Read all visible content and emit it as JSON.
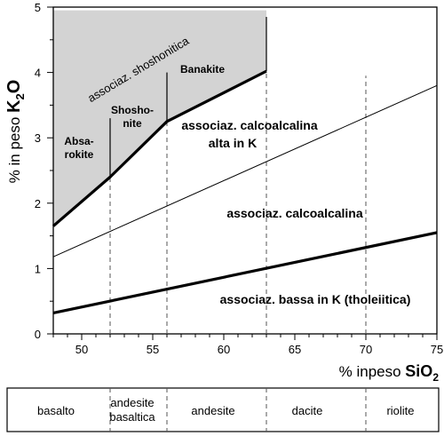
{
  "chart_data": {
    "type": "line",
    "xlabel": {
      "prefix": "% inpeso ",
      "bold": "SiO",
      "sub": "2"
    },
    "ylabel": {
      "prefix": "% in peso ",
      "bold": "K",
      "sub": "2",
      "suffix": "O"
    },
    "xlim": [
      48,
      75
    ],
    "ylim": [
      0,
      5
    ],
    "xticks": [
      "50",
      "55",
      "60",
      "65",
      "70",
      "75"
    ],
    "xtick_values": [
      50,
      55,
      60,
      65,
      70,
      75
    ],
    "yticks": [
      "0",
      "1",
      "2",
      "3",
      "4",
      "5"
    ],
    "ytick_values": [
      0,
      1,
      2,
      3,
      4,
      5
    ],
    "shoshonitic_region": {
      "fill": "#d3d3d3",
      "boundary_x": 63,
      "top_y": 4.95
    },
    "series": [
      {
        "points": [
          [
            48,
            1.65
          ],
          [
            52,
            2.4
          ],
          [
            56,
            3.25
          ],
          [
            63,
            4.02
          ]
        ],
        "style": "thick"
      },
      {
        "points": [
          [
            48,
            1.18
          ],
          [
            75,
            3.8
          ]
        ],
        "style": "thin"
      },
      {
        "points": [
          [
            48,
            0.32
          ],
          [
            75,
            1.55
          ]
        ],
        "style": "thick"
      }
    ],
    "vertical_dividers": [
      {
        "x": 52,
        "y_from": 2.4,
        "y_to": 3.3,
        "style": "solid"
      },
      {
        "x": 56,
        "y_from": 3.25,
        "y_to": 4.0,
        "style": "solid"
      },
      {
        "x": 63,
        "y_from": 4.02,
        "y_to": 4.85,
        "style": "solid"
      }
    ],
    "dashed_x": [
      52,
      56,
      63,
      70
    ],
    "dashed_ranges": [
      [
        0,
        2.4
      ],
      [
        0,
        3.25
      ],
      [
        0,
        4.02
      ],
      [
        0,
        3.95
      ]
    ],
    "annotations": {
      "shoshonitic": "associaz. shoshonitica",
      "absarokite_1": "Absa-",
      "absarokite_2": "rokite",
      "shoshonite_1": "Shosho-",
      "shoshonite_2": "nite",
      "banakite": "Banakite",
      "calc_high_1": "associaz. calcoalcalina",
      "calc_high_2": "alta in K",
      "calc": "associaz. calcoalcalina",
      "low_k": "associaz. bassa in K (tholeiitica)"
    },
    "rock_names": [
      "basalto",
      "andesite",
      "basaltica",
      "andesite",
      "dacite",
      "riolite"
    ]
  }
}
